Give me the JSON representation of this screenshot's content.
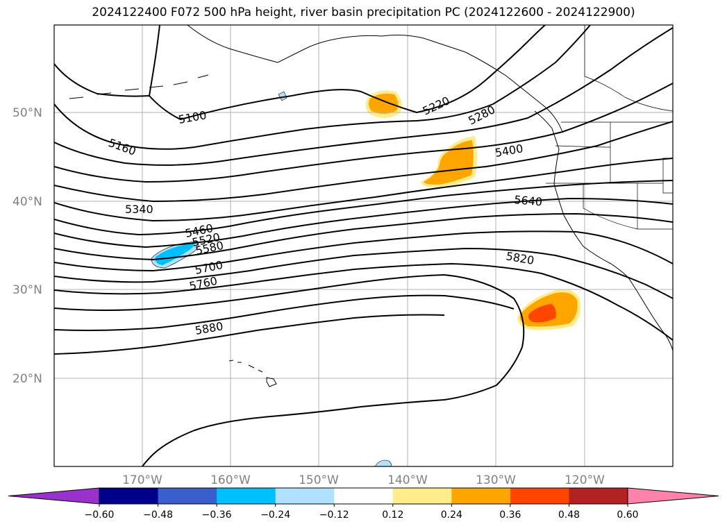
{
  "title": "2024122400 F072 500 hPa height, river basin precipitation PC (2024122600 - 2024122900)",
  "lat_labels": [
    "50°N",
    "40°N",
    "30°N",
    "20°N"
  ],
  "lon_labels": [
    "170°W",
    "160°W",
    "150°W",
    "140°W",
    "130°W",
    "120°W"
  ],
  "contour_labels": [
    "5100",
    "5160",
    "5220",
    "5280",
    "5340",
    "5400",
    "5460",
    "5520",
    "5580",
    "5640",
    "5700",
    "5760",
    "5820",
    "5880"
  ],
  "colorbar": {
    "ticks": [
      "−0.60",
      "−0.48",
      "−0.36",
      "−0.24",
      "−0.12",
      "0.12",
      "0.24",
      "0.36",
      "0.48",
      "0.60"
    ],
    "colors": [
      "#9932cc",
      "#00008b",
      "#3a5fcd",
      "#00bfff",
      "#b0e2ff",
      "#ffffff",
      "#ffec8b",
      "#ffa500",
      "#ff4500",
      "#b22222",
      "#ff82ab"
    ]
  },
  "colors": {
    "positive_light": "#ffec8b",
    "positive_mid": "#ffa500",
    "positive_high": "#ff4500",
    "negative_light": "#b0e2ff",
    "negative_mid": "#00bfff",
    "grid": "#b0b0b0"
  }
}
